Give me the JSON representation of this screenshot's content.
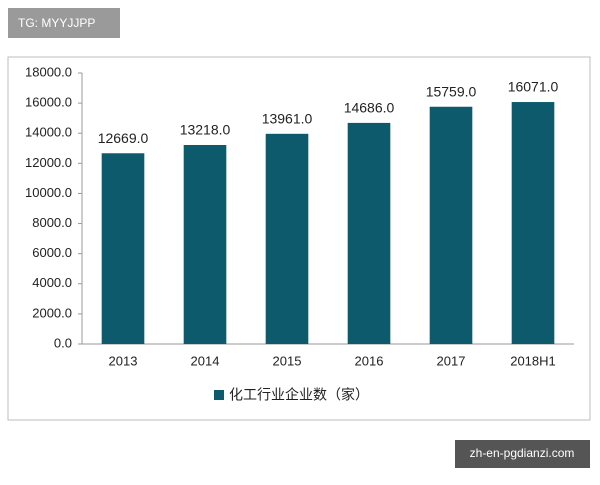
{
  "watermarks": {
    "top_left": "TG: MYYJJPP",
    "bottom_right": "zh-en-pgdianzi.com"
  },
  "chart_data": {
    "type": "bar",
    "categories": [
      "2013",
      "2014",
      "2015",
      "2016",
      "2017",
      "2018H1"
    ],
    "series": [
      {
        "name": "化工行业企业数（家）",
        "color": "#0e5a6d",
        "values": [
          12669,
          13218,
          13961,
          14686,
          15759,
          16071
        ],
        "value_labels": [
          "12669.0",
          "13218.0",
          "13961.0",
          "14686.0",
          "15759.0",
          "16071.0"
        ]
      }
    ],
    "ylim": [
      0,
      18000
    ],
    "yticks": [
      {
        "value": 0,
        "label": "0.0"
      },
      {
        "value": 2000,
        "label": "2000.0"
      },
      {
        "value": 4000,
        "label": "4000.0"
      },
      {
        "value": 6000,
        "label": "6000.0"
      },
      {
        "value": 8000,
        "label": "8000.0"
      },
      {
        "value": 10000,
        "label": "10000.0"
      },
      {
        "value": 12000,
        "label": "12000.0"
      },
      {
        "value": 14000,
        "label": "14000.0"
      },
      {
        "value": 16000,
        "label": "16000.0"
      },
      {
        "value": 18000,
        "label": "18000.0"
      }
    ],
    "grid": false
  }
}
